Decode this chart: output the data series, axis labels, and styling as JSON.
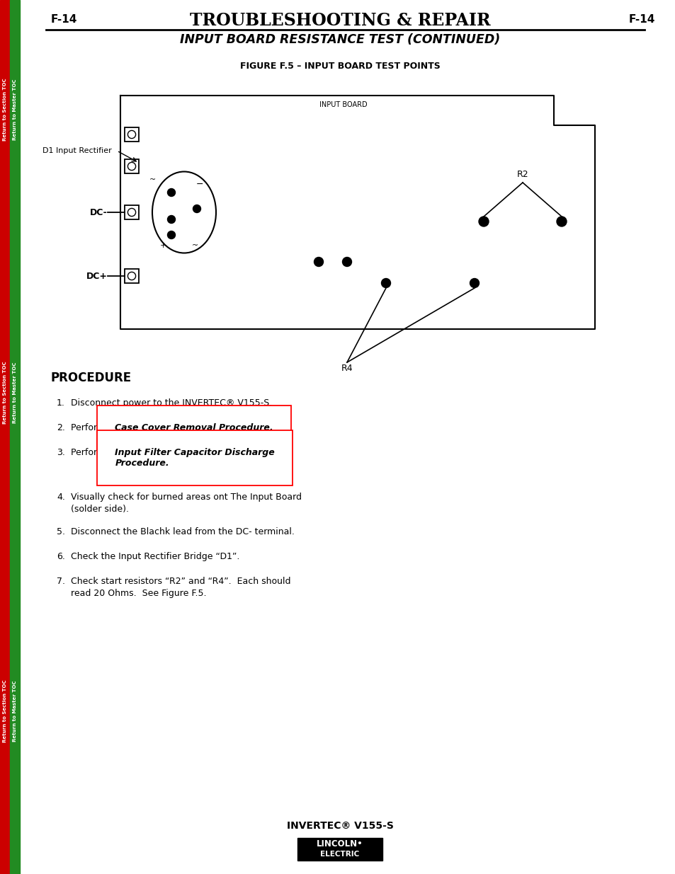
{
  "page_bg": "#ffffff",
  "left_bar_red": "#cc0000",
  "left_bar_green": "#228B22",
  "page_label": "F-14",
  "title_main": "TROUBLESHOOTING & REPAIR",
  "title_sub": "INPUT BOARD RESISTANCE TEST (CONTINUED)",
  "figure_title": "FIGURE F.5 – INPUT BOARD TEST POINTS",
  "procedure_heading": "PROCEDURE",
  "procedure_items": [
    "Disconnect power to the INVERTEC® V155-S.",
    "Perform the |Case Cover Removal Procedure.|",
    "Perform the |Input Filter Capacitor Discharge\nProcedure.|",
    "Visually check for burned areas ont The Input Board\n(solder side).",
    "Disconnect the Blachk lead from the DC- terminal.",
    "Check the Input Rectifier Bridge “D1”.",
    "Check start resistors “R2” and “R4”.  Each should\nread 20 Ohms.  See Figure F.5."
  ],
  "footer_model": "INVERTEC® V155-S",
  "sidebar_red_text": "Return to Section TOC",
  "sidebar_green_text": "Return to Master TOC"
}
